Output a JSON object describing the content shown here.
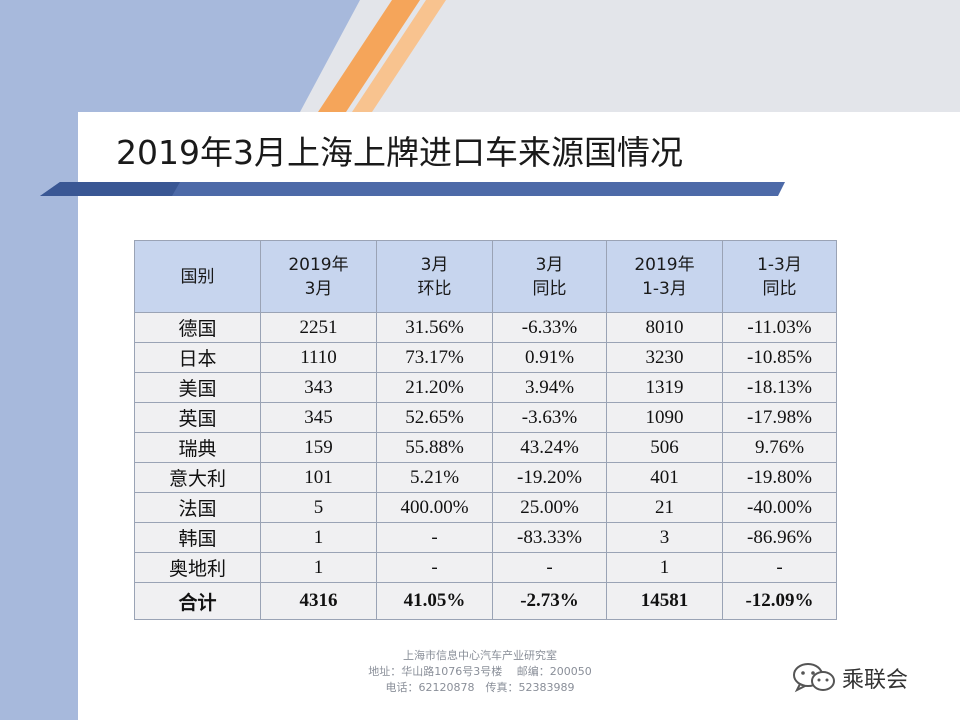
{
  "title": "2019年3月上海上牌进口车来源国情况",
  "table": {
    "headers": [
      {
        "line1": "国别",
        "line2": ""
      },
      {
        "line1": "2019年",
        "line2": "3月"
      },
      {
        "line1": "3月",
        "line2": "环比"
      },
      {
        "line1": "3月",
        "line2": "同比"
      },
      {
        "line1": "2019年",
        "line2": "1-3月"
      },
      {
        "line1": "1-3月",
        "line2": "同比"
      }
    ],
    "rows": [
      {
        "country": "德国",
        "mar": "2251",
        "mom": "31.56%",
        "yoy": "-6.33%",
        "ytd": "8010",
        "ytd_yoy": "-11.03%"
      },
      {
        "country": "日本",
        "mar": "1110",
        "mom": "73.17%",
        "yoy": "0.91%",
        "ytd": "3230",
        "ytd_yoy": "-10.85%"
      },
      {
        "country": "美国",
        "mar": "343",
        "mom": "21.20%",
        "yoy": "3.94%",
        "ytd": "1319",
        "ytd_yoy": "-18.13%"
      },
      {
        "country": "英国",
        "mar": "345",
        "mom": "52.65%",
        "yoy": "-3.63%",
        "ytd": "1090",
        "ytd_yoy": "-17.98%"
      },
      {
        "country": "瑞典",
        "mar": "159",
        "mom": "55.88%",
        "yoy": "43.24%",
        "ytd": "506",
        "ytd_yoy": "9.76%"
      },
      {
        "country": "意大利",
        "mar": "101",
        "mom": "5.21%",
        "yoy": "-19.20%",
        "ytd": "401",
        "ytd_yoy": "-19.80%"
      },
      {
        "country": "法国",
        "mar": "5",
        "mom": "400.00%",
        "yoy": "25.00%",
        "ytd": "21",
        "ytd_yoy": "-40.00%"
      },
      {
        "country": "韩国",
        "mar": "1",
        "mom": "-",
        "yoy": "-83.33%",
        "ytd": "3",
        "ytd_yoy": "-86.96%"
      },
      {
        "country": "奥地利",
        "mar": "1",
        "mom": "-",
        "yoy": "-",
        "ytd": "1",
        "ytd_yoy": "-"
      }
    ],
    "total": {
      "country": "合计",
      "mar": "4316",
      "mom": "41.05%",
      "yoy": "-2.73%",
      "ytd": "14581",
      "ytd_yoy": "-12.09%"
    }
  },
  "footer": {
    "org": "上海市信息中心汽车产业研究室",
    "address": "地址：华山路1076号3号楼　 邮编：200050",
    "contact": "电话：62120878　传真：52383989"
  },
  "brand": {
    "name": "乘联会",
    "icon": "wechat-icon"
  },
  "colors": {
    "header_bg": "#c7d5ee",
    "cell_bg": "#f0f0f2",
    "band_blue": "#a7b9dc",
    "accent_orange": "#f5a55a"
  }
}
